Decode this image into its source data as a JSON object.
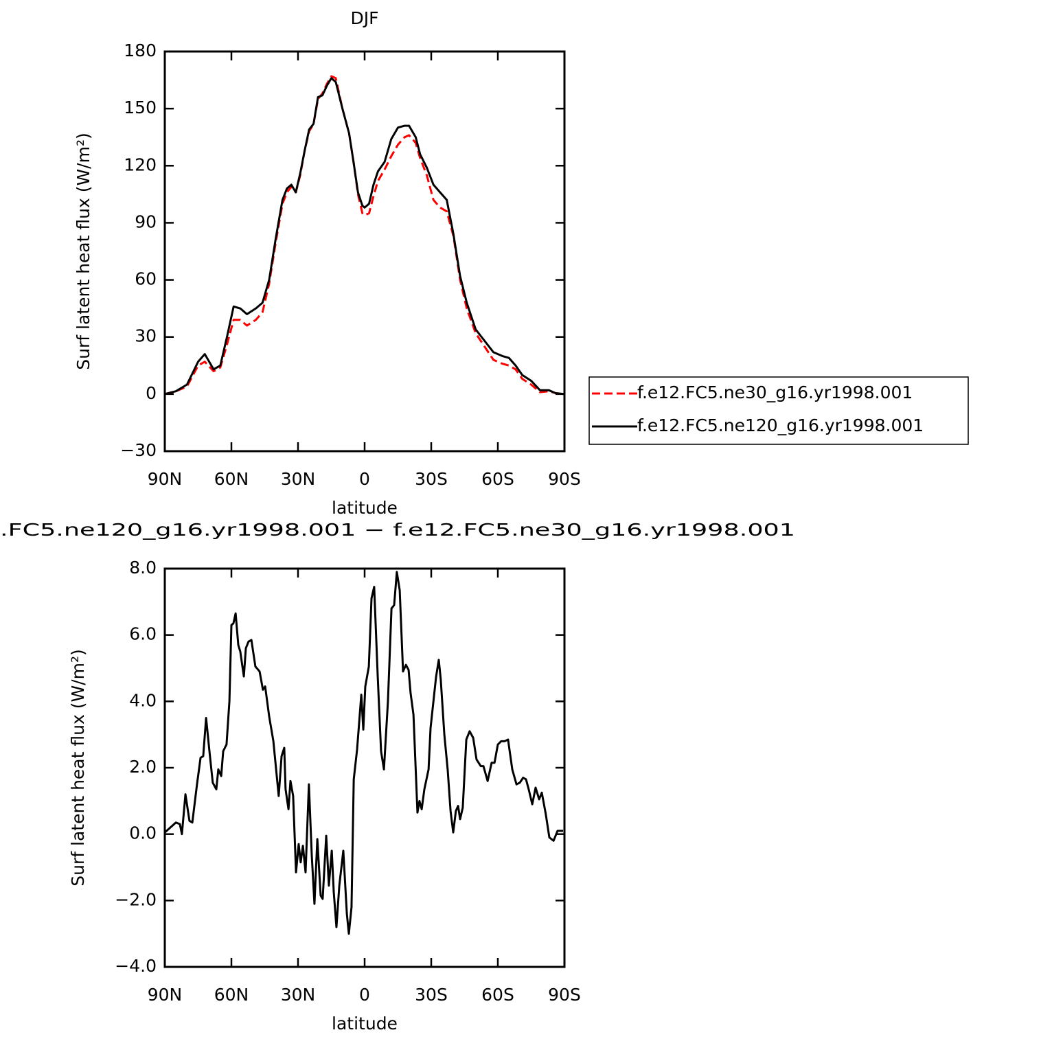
{
  "chart_data": [
    {
      "type": "line",
      "title": "DJF",
      "xlabel": "latitude",
      "ylabel": "Surf latent heat flux (W/m²)",
      "x": [
        90,
        85,
        80,
        75,
        72,
        68,
        65,
        62,
        59,
        56,
        53,
        49,
        46,
        43,
        40,
        37,
        35,
        33,
        31,
        29,
        27,
        25,
        23,
        21,
        19,
        17,
        15,
        13,
        10,
        7,
        5,
        3,
        1,
        0,
        -2,
        -4,
        -6,
        -9,
        -12,
        -15,
        -18,
        -20,
        -23,
        -25,
        -28,
        -31,
        -34,
        -37,
        -40,
        -43,
        -46,
        -50,
        -54,
        -58,
        -62,
        -65,
        -68,
        -71,
        -75,
        -79,
        -83,
        -86,
        -90
      ],
      "series": [
        {
          "name": "f.e12.FC5.ne30_g16.yr1998.001",
          "color": "#ff0000",
          "line_style": "dashed",
          "values": [
            0,
            1.5,
            4,
            15,
            17,
            12,
            14,
            26,
            39,
            39,
            36,
            39,
            43,
            58,
            80,
            100,
            106,
            109,
            106,
            115,
            128,
            138,
            142,
            155,
            158,
            163,
            167,
            166,
            150,
            137,
            122,
            105,
            95,
            94,
            95,
            104,
            112,
            118,
            125,
            131,
            135,
            136,
            132,
            124,
            115,
            102,
            98,
            96,
            83,
            60,
            45,
            32,
            25,
            18,
            16,
            15,
            13,
            8,
            5,
            1,
            1.5,
            0.5,
            0
          ]
        },
        {
          "name": "f.e12.FC5.ne120_g16.yr1998.001",
          "color": "#000000",
          "line_style": "solid",
          "values": [
            0,
            1.5,
            5,
            17,
            21,
            13,
            15,
            30,
            46,
            45,
            42,
            45,
            48,
            60,
            82,
            102,
            108,
            110,
            106,
            116,
            128,
            139,
            142,
            156,
            157,
            162,
            166,
            164,
            150,
            137,
            122,
            106,
            99,
            98,
            100,
            110,
            117,
            122,
            134,
            140,
            141,
            141,
            135,
            126,
            119,
            110,
            106,
            102,
            84,
            62,
            48,
            34,
            28,
            22,
            20,
            19,
            15,
            10,
            7,
            2,
            2,
            0.5,
            0
          ]
        }
      ],
      "xlim": [
        90,
        -90
      ],
      "ylim": [
        -30,
        180
      ],
      "xticks": [
        {
          "value": 90,
          "label": "90N"
        },
        {
          "value": 60,
          "label": "60N"
        },
        {
          "value": 30,
          "label": "30N"
        },
        0,
        {
          "value": -30,
          "label": "30S"
        },
        {
          "value": -60,
          "label": "60S"
        },
        {
          "value": -90,
          "label": "90S"
        }
      ],
      "yticks": [
        {
          "value": -30,
          "label": "−30"
        },
        0,
        30,
        60,
        90,
        120,
        150,
        180
      ],
      "legend": "right"
    },
    {
      "type": "line",
      "title": ".FC5.ne120_g16.yr1998.001 − f.e12.FC5.ne30_g16.yr1998.001",
      "xlabel": "latitude",
      "ylabel": "Surf latent heat flux (W/m²)",
      "color": "#000000",
      "x": [
        90,
        87.5,
        85.0,
        83.2,
        82.3,
        80.7,
        78.9,
        77.6,
        75.5,
        73.9,
        72.7,
        71.4,
        69.9,
        68.4,
        66.8,
        65.9,
        64.6,
        63.7,
        62.2,
        60.9,
        60.0,
        59.1,
        58.1,
        56.9,
        56.0,
        54.4,
        53.5,
        52.3,
        51.0,
        49.2,
        47.3,
        45.8,
        44.8,
        43.0,
        41.1,
        38.7,
        37.4,
        36.2,
        35.6,
        34.3,
        33.4,
        32.2,
        30.9,
        29.7,
        28.8,
        27.8,
        26.6,
        25.1,
        23.8,
        22.6,
        21.3,
        19.8,
        18.9,
        17.3,
        16.1,
        14.8,
        13.9,
        12.7,
        11.4,
        10.2,
        9.6,
        8.0,
        7.1,
        5.9,
        4.9,
        3.4,
        1.5,
        0.6,
        -0.3,
        -1.9,
        -3.1,
        -4.3,
        -5.9,
        -7.4,
        -8.7,
        -10.5,
        -12.1,
        -13.3,
        -14.5,
        -15.8,
        -17.3,
        -18.6,
        -19.8,
        -20.7,
        -22.0,
        -23.8,
        -24.7,
        -25.7,
        -26.9,
        -28.8,
        -29.7,
        -32.2,
        -33.4,
        -34.3,
        -35.9,
        -37.4,
        -38.7,
        -39.9,
        -41.1,
        -42.1,
        -43.0,
        -44.2,
        -45.8,
        -47.3,
        -48.9,
        -50.4,
        -52.3,
        -53.5,
        -55.4,
        -57.2,
        -58.5,
        -60.0,
        -61.5,
        -63.1,
        -64.6,
        -66.5,
        -68.4,
        -69.9,
        -71.4,
        -72.7,
        -73.9,
        -75.5,
        -77.0,
        -78.6,
        -79.8,
        -81.6,
        -83.2,
        -85.1,
        -86.9,
        -89.4
      ],
      "values": [
        0.05,
        0.2,
        0.35,
        0.3,
        0,
        1.2,
        0.4,
        0.35,
        1.5,
        2.3,
        2.35,
        3.5,
        2.5,
        1.55,
        1.35,
        1.95,
        1.75,
        2.5,
        2.7,
        4,
        6.3,
        6.35,
        6.65,
        5.7,
        5.5,
        4.75,
        5.6,
        5.8,
        5.85,
        5.05,
        4.9,
        4.35,
        4.45,
        3.55,
        2.8,
        1.15,
        2.35,
        2.6,
        1.35,
        0.75,
        1.6,
        1.15,
        -1.15,
        -0.3,
        -0.85,
        -0.35,
        -1.15,
        1.5,
        -0.65,
        -2.1,
        -0.15,
        -1.85,
        -1.95,
        -0.05,
        -1.55,
        -0.5,
        -1.75,
        -2.8,
        -1.55,
        -0.85,
        -0.5,
        -2.4,
        -3,
        -2.2,
        1.65,
        2.55,
        4.2,
        3.15,
        4.45,
        5.05,
        7.1,
        7.45,
        4.75,
        2.5,
        1.95,
        4,
        6.8,
        6.9,
        7.9,
        7.35,
        4.9,
        5.1,
        4.95,
        4.25,
        3.6,
        0.65,
        1,
        0.75,
        1.35,
        1.95,
        3.2,
        4.75,
        5.25,
        4.65,
        3,
        1.95,
        0.7,
        0.05,
        0.7,
        0.85,
        0.45,
        0.8,
        2.85,
        3.1,
        2.9,
        2.25,
        2.05,
        2.05,
        1.6,
        2.15,
        2.15,
        2.7,
        2.8,
        2.8,
        2.85,
        1.95,
        1.5,
        1.55,
        1.7,
        1.65,
        1.35,
        0.9,
        1.4,
        1.05,
        1.25,
        0.6,
        -0.1,
        -0.2,
        0.1,
        0.1
      ],
      "xlim": [
        90,
        -90
      ],
      "ylim": [
        -4,
        8
      ],
      "xticks": [
        {
          "value": 90,
          "label": "90N"
        },
        {
          "value": 60,
          "label": "60N"
        },
        {
          "value": 30,
          "label": "30N"
        },
        0,
        {
          "value": -30,
          "label": "30S"
        },
        {
          "value": -60,
          "label": "60S"
        },
        {
          "value": -90,
          "label": "90S"
        }
      ],
      "yticks": [
        {
          "value": -4,
          "label": "−4.0"
        },
        {
          "value": -2,
          "label": "−2.0"
        },
        {
          "value": 0,
          "label": "0.0"
        },
        {
          "value": 2,
          "label": "2.0"
        },
        {
          "value": 4,
          "label": "4.0"
        },
        {
          "value": 6,
          "label": "6.0"
        },
        {
          "value": 8,
          "label": "8.0"
        }
      ]
    }
  ]
}
